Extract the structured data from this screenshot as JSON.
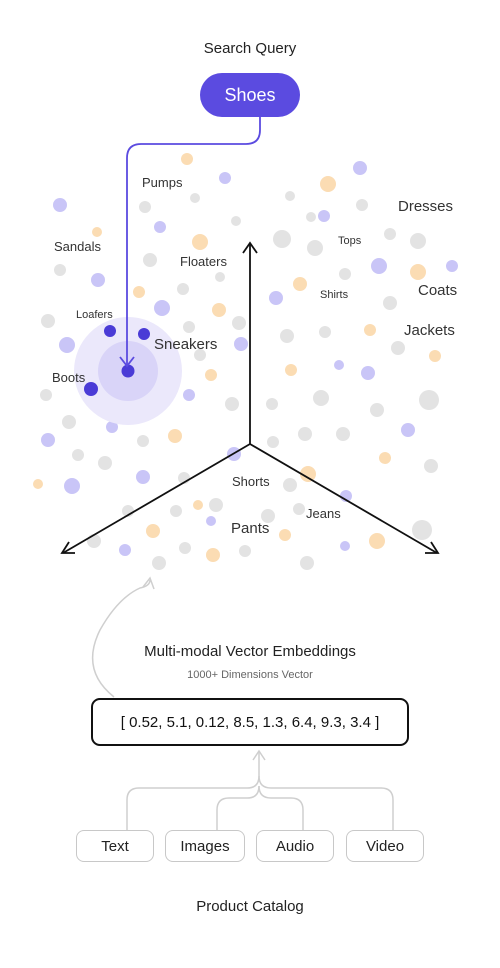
{
  "query": {
    "title": "Search Query",
    "term": "Shoes"
  },
  "clusters": {
    "pumps": "Pumps",
    "sandals": "Sandals",
    "floaters": "Floaters",
    "loafers": "Loafers",
    "sneakers": "Sneakers",
    "boots": "Boots",
    "dresses": "Dresses",
    "tops": "Tops",
    "shirts": "Shirts",
    "coats": "Coats",
    "jackets": "Jackets",
    "shorts": "Shorts",
    "jeans": "Jeans",
    "pants": "Pants"
  },
  "embedding": {
    "title": "Multi-modal Vector Embeddings",
    "subtitle": "1000+ Dimensions Vector",
    "vector": "[ 0.52, 5.1, 0.12, 8.5, 1.3, 6.4, 9.3, 3.4 ]"
  },
  "modalities": [
    "Text",
    "Images",
    "Audio",
    "Video"
  ],
  "catalog": {
    "title": "Product Catalog"
  },
  "colors": {
    "accent": "#5b4be0",
    "purple_dot": "#c9c5f7",
    "orange_dot": "#fbdcb3",
    "gray_dot": "#e3e3e3",
    "highlight": "#ebe8fb"
  }
}
